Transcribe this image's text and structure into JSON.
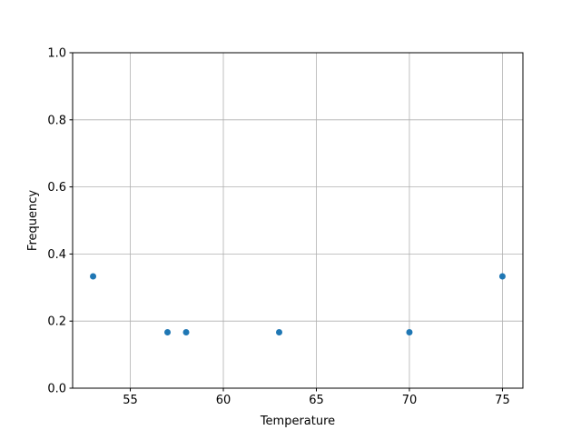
{
  "chart_data": {
    "type": "scatter",
    "title": "",
    "xlabel": "Temperature",
    "ylabel": "Frequency",
    "xlim": [
      51.9,
      76.1
    ],
    "ylim": [
      0,
      1.0
    ],
    "xticks": [
      55,
      60,
      65,
      70,
      75
    ],
    "xtick_labels": [
      "55",
      "60",
      "65",
      "70",
      "75"
    ],
    "yticks": [
      0,
      0.2,
      0.4,
      0.6,
      0.8,
      1.0
    ],
    "ytick_labels": [
      "0.0",
      "0.2",
      "0.4",
      "0.6",
      "0.8",
      "1.0"
    ],
    "grid": true,
    "color": "#1f77b4",
    "points": [
      {
        "x": 53,
        "y": 0.3333
      },
      {
        "x": 57,
        "y": 0.1667
      },
      {
        "x": 58,
        "y": 0.1667
      },
      {
        "x": 63,
        "y": 0.1667
      },
      {
        "x": 70,
        "y": 0.1667
      },
      {
        "x": 75,
        "y": 0.3333
      }
    ]
  }
}
